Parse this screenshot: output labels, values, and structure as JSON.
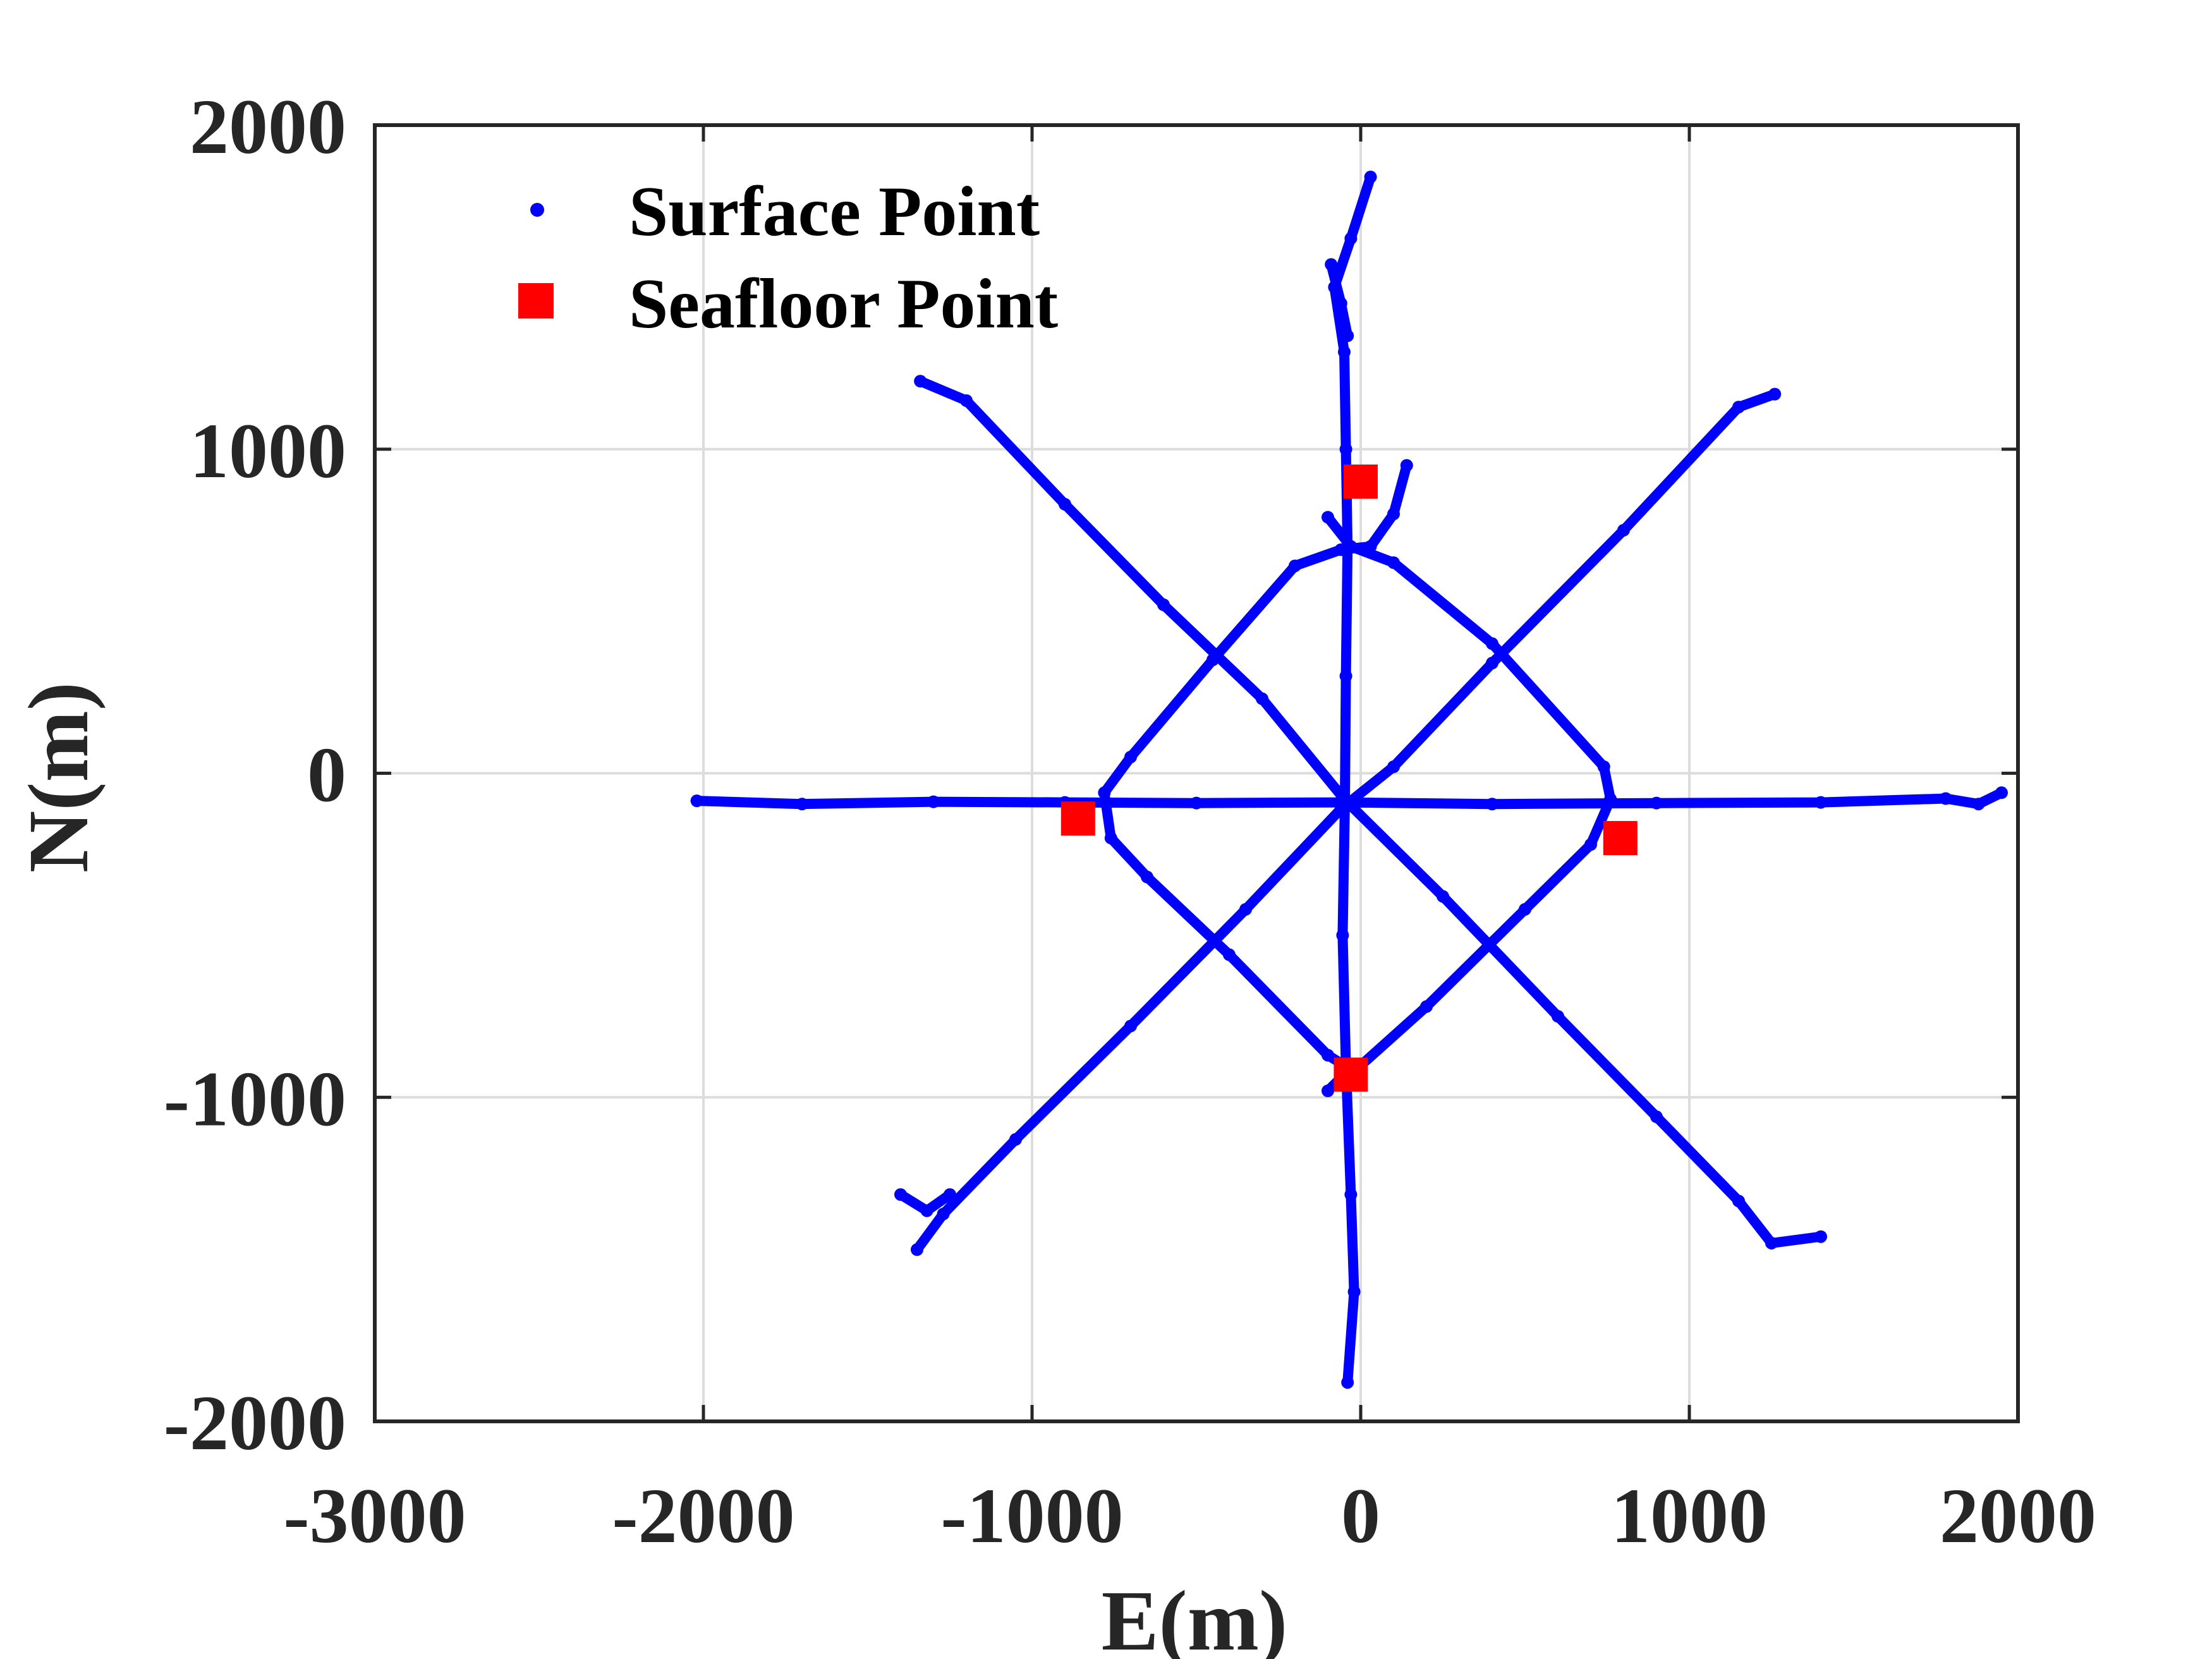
{
  "chart_data": {
    "type": "scatter",
    "title": "",
    "xlabel": "E(m)",
    "ylabel": "N(m)",
    "xlim": [
      -3000,
      2000
    ],
    "ylim": [
      -2000,
      2000
    ],
    "xticks": [
      -3000,
      -2000,
      -1000,
      0,
      1000,
      2000
    ],
    "yticks": [
      -2000,
      -1000,
      0,
      1000,
      2000
    ],
    "xtick_labels": [
      "-3000",
      "-2000",
      "-1000",
      "0",
      "1000",
      "2000"
    ],
    "ytick_labels": [
      "-2000",
      "-1000",
      "0",
      "1000",
      "2000"
    ],
    "grid": true,
    "legend_position": "top-left",
    "series": [
      {
        "name": "Surface Point",
        "marker": "dot",
        "color": "#0000ff",
        "tracks": [
          [
            [
              -2020,
              -85
            ],
            [
              -1700,
              -95
            ],
            [
              -1300,
              -88
            ],
            [
              -900,
              -90
            ],
            [
              -500,
              -92
            ],
            [
              -60,
              -90
            ],
            [
              400,
              -95
            ],
            [
              900,
              -92
            ],
            [
              1400,
              -90
            ],
            [
              1780,
              -78
            ],
            [
              1880,
              -95
            ],
            [
              1950,
              -60
            ]
          ],
          [
            [
              -1340,
              1210
            ],
            [
              -1200,
              1150
            ],
            [
              -900,
              830
            ],
            [
              -600,
              520
            ],
            [
              -300,
              230
            ],
            [
              -50,
              -80
            ],
            [
              250,
              -380
            ],
            [
              600,
              -750
            ],
            [
              900,
              -1060
            ],
            [
              1150,
              -1320
            ],
            [
              1250,
              -1450
            ],
            [
              1400,
              -1430
            ]
          ],
          [
            [
              1260,
              1170
            ],
            [
              1150,
              1130
            ],
            [
              800,
              750
            ],
            [
              400,
              340
            ],
            [
              100,
              20
            ],
            [
              -60,
              -110
            ],
            [
              -350,
              -420
            ],
            [
              -700,
              -780
            ],
            [
              -1050,
              -1130
            ],
            [
              -1270,
              -1360
            ],
            [
              -1350,
              -1470
            ]
          ],
          [
            [
              -1400,
              -1300
            ],
            [
              -1320,
              -1350
            ],
            [
              -1250,
              -1300
            ]
          ],
          [
            [
              30,
              1840
            ],
            [
              -30,
              1650
            ],
            [
              -80,
              1500
            ],
            [
              -50,
              1300
            ],
            [
              -45,
              1000
            ],
            [
              -40,
              700
            ],
            [
              -45,
              300
            ],
            [
              -48,
              -90
            ],
            [
              -55,
              -500
            ],
            [
              -45,
              -900
            ],
            [
              -30,
              -1300
            ],
            [
              -20,
              -1600
            ],
            [
              -40,
              -1880
            ]
          ],
          [
            [
              -90,
              1570
            ],
            [
              -60,
              1450
            ],
            [
              -40,
              1350
            ]
          ],
          [
            [
              140,
              950
            ],
            [
              100,
              800
            ],
            [
              30,
              700
            ],
            [
              -60,
              690
            ],
            [
              -200,
              640
            ],
            [
              -450,
              350
            ],
            [
              -700,
              50
            ],
            [
              -780,
              -60
            ],
            [
              -760,
              -200
            ],
            [
              -650,
              -320
            ],
            [
              -400,
              -560
            ],
            [
              -100,
              -870
            ],
            [
              -20,
              -920
            ],
            [
              200,
              -720
            ],
            [
              500,
              -420
            ],
            [
              700,
              -220
            ],
            [
              760,
              -80
            ],
            [
              740,
              20
            ],
            [
              400,
              400
            ],
            [
              100,
              650
            ],
            [
              -30,
              700
            ],
            [
              -100,
              790
            ]
          ],
          [
            [
              -100,
              -980
            ],
            [
              -60,
              -940
            ],
            [
              -20,
              -920
            ]
          ]
        ]
      },
      {
        "name": "Seafloor Point",
        "marker": "square",
        "color": "#ff0000",
        "points": [
          [
            0,
            900
          ],
          [
            -860,
            -140
          ],
          [
            790,
            -200
          ],
          [
            -30,
            -930
          ]
        ]
      }
    ]
  }
}
